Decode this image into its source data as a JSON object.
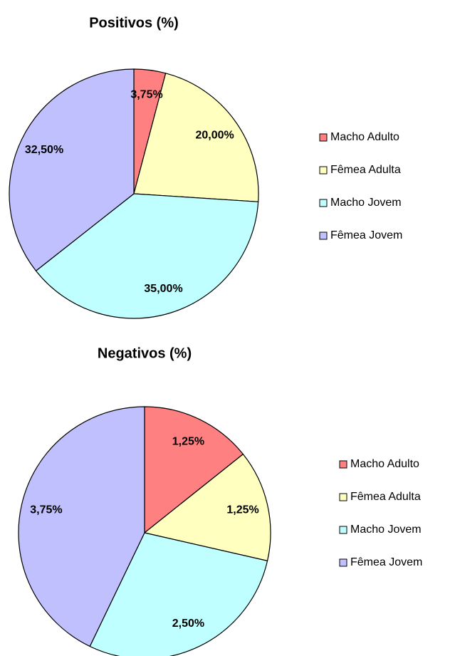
{
  "chart_data": [
    {
      "type": "pie",
      "title": "Positivos (%)",
      "categories": [
        "Macho Adulto",
        "Fêmea Adulta",
        "Macho Jovem",
        "Fêmea Jovem"
      ],
      "values": [
        3.75,
        20,
        35,
        32.5
      ],
      "value_labels": [
        "3,75%",
        "20,00%",
        "35,00%",
        "32,50%"
      ],
      "colors": [
        "#ff8080",
        "#ffffc0",
        "#c0ffff",
        "#c0c0ff"
      ],
      "legend": "right"
    },
    {
      "type": "pie",
      "title": "Negativos (%)",
      "categories": [
        "Macho Adulto",
        "Fêmea Adulta",
        "Macho Jovem",
        "Fêmea Jovem"
      ],
      "values": [
        1.25,
        1.25,
        2.5,
        3.75
      ],
      "value_labels": [
        "1,25%",
        "1,25%",
        "2,50%",
        "3,75%"
      ],
      "colors": [
        "#ff8080",
        "#ffffc0",
        "#c0ffff",
        "#c0c0ff"
      ],
      "legend": "right"
    }
  ]
}
